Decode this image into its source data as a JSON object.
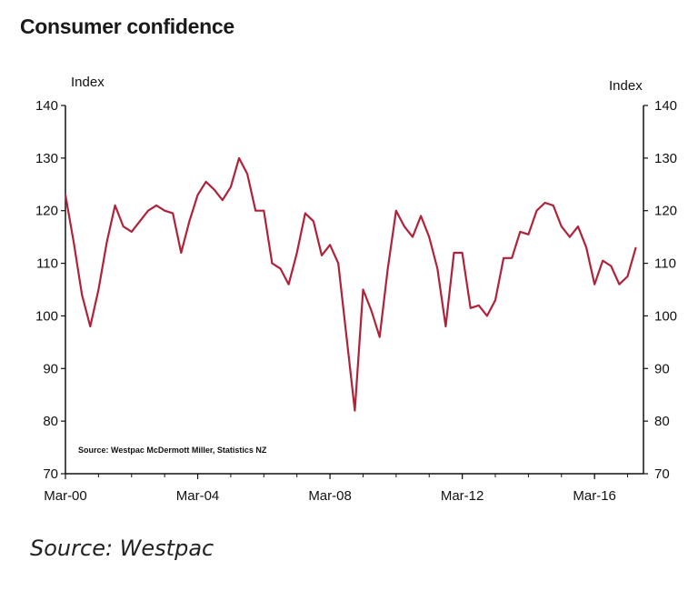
{
  "chart_data": {
    "type": "line",
    "title": "Consumer confidence",
    "ylabel_left": "Index",
    "ylabel_right": "Index",
    "ylim": [
      70,
      140
    ],
    "yticks": [
      70,
      80,
      90,
      100,
      110,
      120,
      130,
      140
    ],
    "xlim": [
      2000.17,
      2017.65
    ],
    "xticks": [
      {
        "label": "Mar-00",
        "x": 2000.17
      },
      {
        "label": "Mar-04",
        "x": 2004.17
      },
      {
        "label": "Mar-08",
        "x": 2008.17
      },
      {
        "label": "Mar-12",
        "x": 2012.17
      },
      {
        "label": "Mar-16",
        "x": 2016.17
      }
    ],
    "grid": false,
    "legend": "none",
    "series": [
      {
        "color": "#b0223a",
        "points": [
          [
            2000.17,
            123
          ],
          [
            2000.42,
            114
          ],
          [
            2000.67,
            104
          ],
          [
            2000.92,
            98
          ],
          [
            2001.17,
            105
          ],
          [
            2001.42,
            114
          ],
          [
            2001.67,
            121
          ],
          [
            2001.92,
            117
          ],
          [
            2002.17,
            116
          ],
          [
            2002.42,
            118
          ],
          [
            2002.67,
            120
          ],
          [
            2002.92,
            121
          ],
          [
            2003.17,
            120
          ],
          [
            2003.42,
            119.5
          ],
          [
            2003.67,
            112
          ],
          [
            2003.92,
            118
          ],
          [
            2004.17,
            123
          ],
          [
            2004.42,
            125.5
          ],
          [
            2004.67,
            124
          ],
          [
            2004.92,
            122
          ],
          [
            2005.17,
            124.5
          ],
          [
            2005.42,
            130
          ],
          [
            2005.67,
            127
          ],
          [
            2005.92,
            120
          ],
          [
            2006.17,
            120
          ],
          [
            2006.42,
            110
          ],
          [
            2006.67,
            109
          ],
          [
            2006.92,
            106
          ],
          [
            2007.17,
            112
          ],
          [
            2007.42,
            119.5
          ],
          [
            2007.67,
            118
          ],
          [
            2007.92,
            111.5
          ],
          [
            2008.17,
            113.5
          ],
          [
            2008.42,
            110
          ],
          [
            2008.67,
            96
          ],
          [
            2008.92,
            82
          ],
          [
            2009.17,
            105
          ],
          [
            2009.42,
            101
          ],
          [
            2009.67,
            96
          ],
          [
            2009.92,
            109
          ],
          [
            2010.17,
            120
          ],
          [
            2010.42,
            117
          ],
          [
            2010.67,
            115
          ],
          [
            2010.92,
            119
          ],
          [
            2011.17,
            115
          ],
          [
            2011.42,
            109
          ],
          [
            2011.67,
            98
          ],
          [
            2011.92,
            112
          ],
          [
            2012.17,
            112
          ],
          [
            2012.42,
            101.5
          ],
          [
            2012.67,
            102
          ],
          [
            2012.92,
            100
          ],
          [
            2013.17,
            103
          ],
          [
            2013.42,
            111
          ],
          [
            2013.67,
            111
          ],
          [
            2013.92,
            116
          ],
          [
            2014.17,
            115.5
          ],
          [
            2014.42,
            120
          ],
          [
            2014.67,
            121.5
          ],
          [
            2014.92,
            121
          ],
          [
            2015.17,
            117
          ],
          [
            2015.42,
            115
          ],
          [
            2015.67,
            117
          ],
          [
            2015.92,
            113
          ],
          [
            2016.17,
            106
          ],
          [
            2016.42,
            110.5
          ],
          [
            2016.67,
            109.5
          ],
          [
            2016.92,
            106
          ],
          [
            2017.17,
            107.5
          ],
          [
            2017.42,
            113
          ]
        ]
      }
    ],
    "annotations": [
      "Source: Westpac McDermott Miller, Statistics NZ"
    ]
  },
  "footer": "Source: Westpac"
}
